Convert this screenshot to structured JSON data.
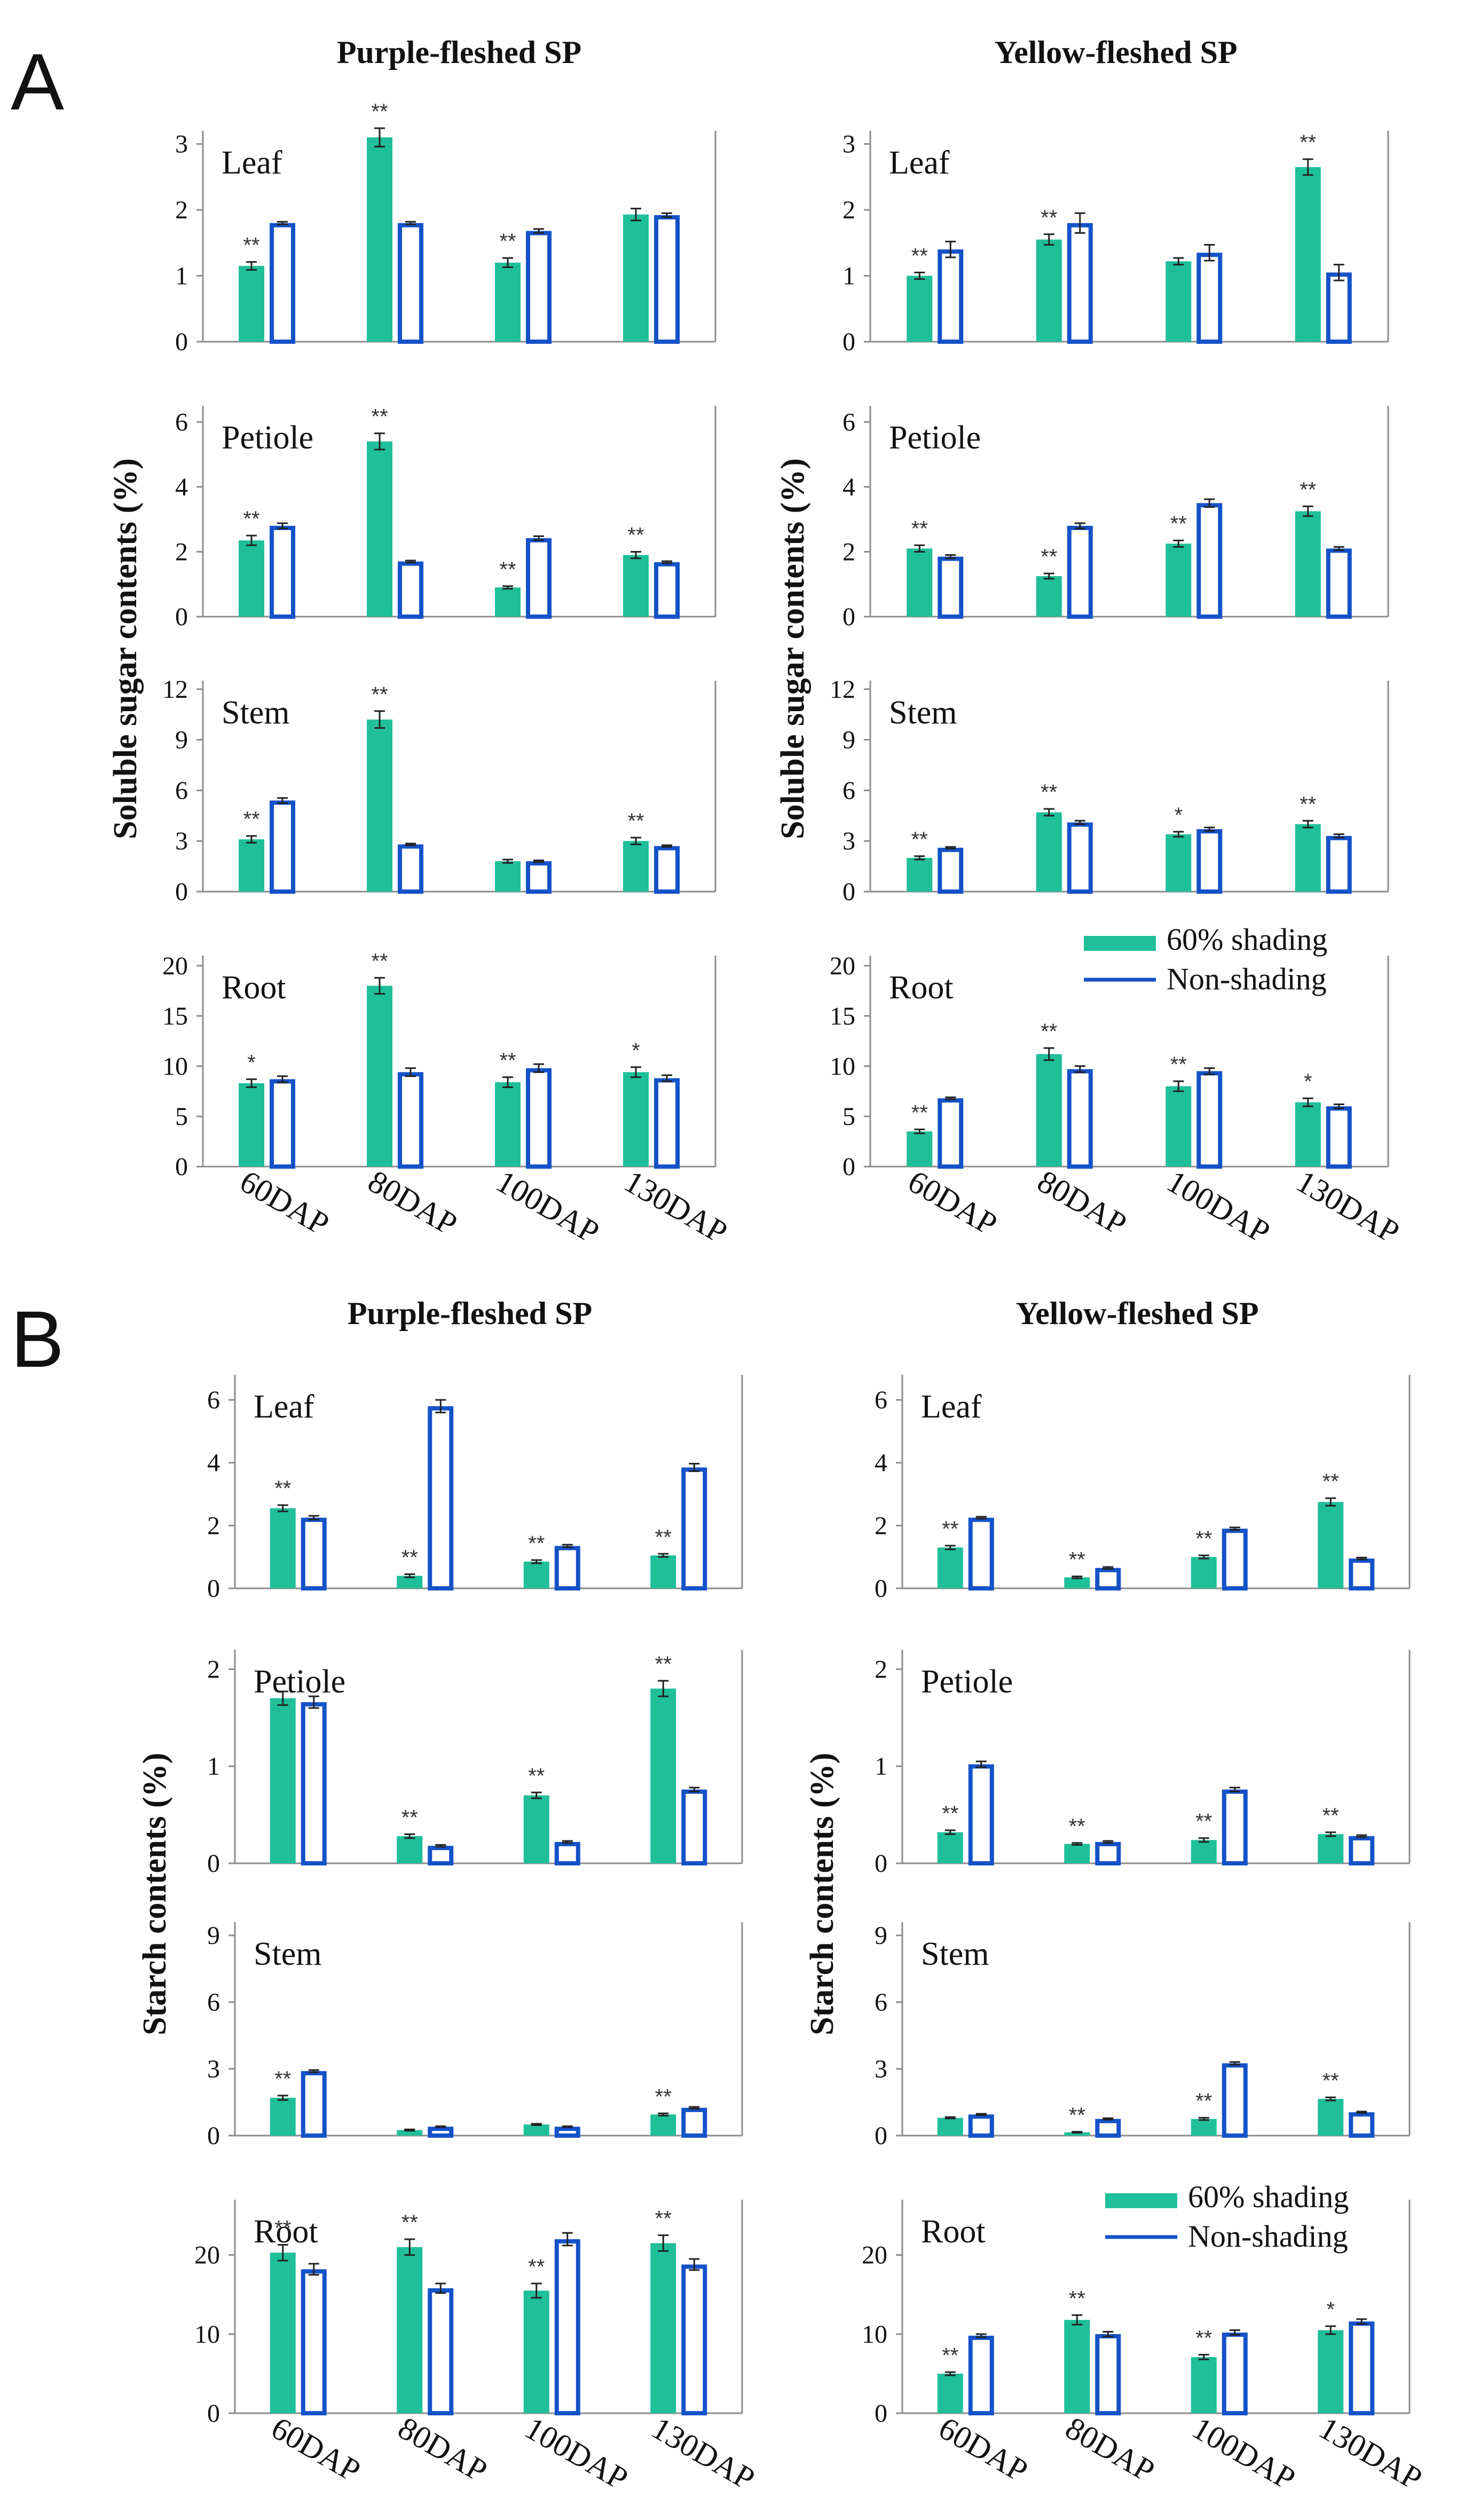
{
  "colors": {
    "shaded": "#1fbf9a",
    "nonshaded": "#1452c8",
    "axis": "#8c8c8c",
    "text": "#111111"
  },
  "sections": [
    {
      "letter": "A",
      "group_titles": [
        "Purple-fleshed SP",
        "Yellow-fleshed SP"
      ],
      "y_label": "Soluble  sugar  contents  (%)",
      "categories": [
        "60DAP",
        "80DAP",
        "100DAP",
        "130DAP"
      ],
      "legend": {
        "shaded": "60% shading",
        "nonshaded": "Non-shading",
        "column": 1
      }
    },
    {
      "letter": "B",
      "group_titles": [
        "Purple-fleshed SP",
        "Yellow-fleshed SP"
      ],
      "y_label": "Starch  contents  (%)",
      "categories": [
        "60DAP",
        "80DAP",
        "100DAP",
        "130DAP"
      ],
      "legend": {
        "shaded": "60% shading",
        "nonshaded": "Non-shading",
        "column": 1
      }
    }
  ],
  "chart_data": [
    {
      "type": "bar",
      "section": "A",
      "group": "Purple-fleshed SP",
      "title": "Leaf",
      "categories": [
        "60DAP",
        "80DAP",
        "100DAP",
        "130DAP"
      ],
      "ylim": [
        0,
        3.2
      ],
      "yticks": [
        0,
        1,
        2,
        3
      ],
      "series": [
        {
          "name": "60% shading",
          "values": [
            1.15,
            3.1,
            1.2,
            1.93
          ],
          "errors": [
            0.06,
            0.14,
            0.07,
            0.09
          ]
        },
        {
          "name": "Non-shading",
          "values": [
            1.8,
            1.8,
            1.68,
            1.92
          ],
          "errors": [
            0.02,
            0.02,
            0.03,
            0.03
          ]
        }
      ],
      "significance": [
        "**",
        "**",
        "**",
        ""
      ]
    },
    {
      "type": "bar",
      "section": "A",
      "group": "Purple-fleshed SP",
      "title": "Petiole",
      "categories": [
        "60DAP",
        "80DAP",
        "100DAP",
        "130DAP"
      ],
      "ylim": [
        0,
        6.5
      ],
      "yticks": [
        0,
        2,
        4,
        6
      ],
      "series": [
        {
          "name": "60% shading",
          "values": [
            2.35,
            5.4,
            0.9,
            1.9
          ],
          "errors": [
            0.15,
            0.25,
            0.04,
            0.1
          ]
        },
        {
          "name": "Non-shading",
          "values": [
            2.8,
            1.7,
            2.42,
            1.68
          ],
          "errors": [
            0.08,
            0.03,
            0.06,
            0.03
          ]
        }
      ],
      "significance": [
        "**",
        "**",
        "**",
        "**"
      ]
    },
    {
      "type": "bar",
      "section": "A",
      "group": "Purple-fleshed SP",
      "title": "Stem",
      "categories": [
        "60DAP",
        "80DAP",
        "100DAP",
        "130DAP"
      ],
      "ylim": [
        0,
        12.5
      ],
      "yticks": [
        0,
        3,
        6,
        9,
        12
      ],
      "series": [
        {
          "name": "60% shading",
          "values": [
            3.1,
            10.2,
            1.8,
            3.0
          ],
          "errors": [
            0.2,
            0.5,
            0.1,
            0.2
          ]
        },
        {
          "name": "Non-shading",
          "values": [
            5.4,
            2.8,
            1.8,
            2.7
          ],
          "errors": [
            0.15,
            0.05,
            0.05,
            0.05
          ]
        }
      ],
      "significance": [
        "**",
        "**",
        "",
        "**"
      ]
    },
    {
      "type": "bar",
      "section": "A",
      "group": "Purple-fleshed SP",
      "title": "Root",
      "categories": [
        "60DAP",
        "80DAP",
        "100DAP",
        "130DAP"
      ],
      "ylim": [
        0,
        21
      ],
      "yticks": [
        0,
        5,
        10,
        15,
        20
      ],
      "series": [
        {
          "name": "60% shading",
          "values": [
            8.3,
            18.0,
            8.4,
            9.4
          ],
          "errors": [
            0.4,
            0.8,
            0.5,
            0.5
          ]
        },
        {
          "name": "Non-shading",
          "values": [
            8.7,
            9.4,
            9.8,
            8.8
          ],
          "errors": [
            0.3,
            0.4,
            0.4,
            0.3
          ]
        }
      ],
      "significance": [
        "*",
        "**",
        "**",
        "*"
      ]
    },
    {
      "type": "bar",
      "section": "A",
      "group": "Yellow-fleshed SP",
      "title": "Leaf",
      "categories": [
        "60DAP",
        "80DAP",
        "100DAP",
        "130DAP"
      ],
      "ylim": [
        0,
        3.2
      ],
      "yticks": [
        0,
        1,
        2,
        3
      ],
      "series": [
        {
          "name": "60% shading",
          "values": [
            1.0,
            1.55,
            1.22,
            2.65
          ],
          "errors": [
            0.05,
            0.08,
            0.05,
            0.12
          ]
        },
        {
          "name": "Non-shading",
          "values": [
            1.4,
            1.8,
            1.35,
            1.05
          ],
          "errors": [
            0.12,
            0.15,
            0.12,
            0.12
          ]
        }
      ],
      "significance": [
        "**",
        "**",
        "",
        "**"
      ]
    },
    {
      "type": "bar",
      "section": "A",
      "group": "Yellow-fleshed SP",
      "title": "Petiole",
      "categories": [
        "60DAP",
        "80DAP",
        "100DAP",
        "130DAP"
      ],
      "ylim": [
        0,
        6.5
      ],
      "yticks": [
        0,
        2,
        4,
        6
      ],
      "series": [
        {
          "name": "60% shading",
          "values": [
            2.1,
            1.25,
            2.25,
            3.25
          ],
          "errors": [
            0.1,
            0.08,
            0.1,
            0.15
          ]
        },
        {
          "name": "Non-shading",
          "values": [
            1.85,
            2.8,
            3.5,
            2.1
          ],
          "errors": [
            0.05,
            0.08,
            0.12,
            0.05
          ]
        }
      ],
      "significance": [
        "**",
        "**",
        "**",
        "**"
      ]
    },
    {
      "type": "bar",
      "section": "A",
      "group": "Yellow-fleshed SP",
      "title": "Stem",
      "categories": [
        "60DAP",
        "80DAP",
        "100DAP",
        "130DAP"
      ],
      "ylim": [
        0,
        12.5
      ],
      "yticks": [
        0,
        3,
        6,
        9,
        12
      ],
      "series": [
        {
          "name": "60% shading",
          "values": [
            2.0,
            4.7,
            3.4,
            4.0
          ],
          "errors": [
            0.1,
            0.2,
            0.15,
            0.2
          ]
        },
        {
          "name": "Non-shading",
          "values": [
            2.6,
            4.1,
            3.7,
            3.3
          ],
          "errors": [
            0.05,
            0.1,
            0.1,
            0.1
          ]
        }
      ],
      "significance": [
        "**",
        "**",
        "*",
        "**"
      ]
    },
    {
      "type": "bar",
      "section": "A",
      "group": "Yellow-fleshed SP",
      "title": "Root",
      "categories": [
        "60DAP",
        "80DAP",
        "100DAP",
        "130DAP"
      ],
      "ylim": [
        0,
        21
      ],
      "yticks": [
        0,
        5,
        10,
        15,
        20
      ],
      "series": [
        {
          "name": "60% shading",
          "values": [
            3.5,
            11.2,
            8.0,
            6.4
          ],
          "errors": [
            0.2,
            0.6,
            0.5,
            0.4
          ]
        },
        {
          "name": "Non-shading",
          "values": [
            6.8,
            9.7,
            9.5,
            6.0
          ],
          "errors": [
            0.1,
            0.3,
            0.3,
            0.2
          ]
        }
      ],
      "significance": [
        "**",
        "**",
        "**",
        "*"
      ]
    },
    {
      "type": "bar",
      "section": "B",
      "group": "Purple-fleshed SP",
      "title": "Leaf",
      "categories": [
        "60DAP",
        "80DAP",
        "100DAP",
        "130DAP"
      ],
      "ylim": [
        0,
        6.8
      ],
      "yticks": [
        0,
        2,
        4,
        6
      ],
      "series": [
        {
          "name": "60% shading",
          "values": [
            2.55,
            0.4,
            0.85,
            1.05
          ],
          "errors": [
            0.1,
            0.05,
            0.05,
            0.05
          ]
        },
        {
          "name": "Non-shading",
          "values": [
            2.25,
            5.8,
            1.35,
            3.85
          ],
          "errors": [
            0.06,
            0.2,
            0.04,
            0.12
          ]
        }
      ],
      "significance": [
        "**",
        "**",
        "**",
        "**"
      ]
    },
    {
      "type": "bar",
      "section": "B",
      "group": "Purple-fleshed SP",
      "title": "Petiole",
      "categories": [
        "60DAP",
        "80DAP",
        "100DAP",
        "130DAP"
      ],
      "ylim": [
        0,
        2.2
      ],
      "yticks": [
        0,
        1,
        2
      ],
      "series": [
        {
          "name": "60% shading",
          "values": [
            1.7,
            0.28,
            0.7,
            1.8
          ],
          "errors": [
            0.07,
            0.02,
            0.03,
            0.08
          ]
        },
        {
          "name": "Non-shading",
          "values": [
            1.66,
            0.18,
            0.22,
            0.76
          ],
          "errors": [
            0.06,
            0.01,
            0.01,
            0.02
          ]
        }
      ],
      "significance": [
        "",
        "**",
        "**",
        "**"
      ]
    },
    {
      "type": "bar",
      "section": "B",
      "group": "Purple-fleshed SP",
      "title": "Stem",
      "categories": [
        "60DAP",
        "80DAP",
        "100DAP",
        "130DAP"
      ],
      "ylim": [
        0,
        9.6
      ],
      "yticks": [
        0,
        3,
        6,
        9
      ],
      "series": [
        {
          "name": "60% shading",
          "values": [
            1.7,
            0.25,
            0.5,
            0.95
          ],
          "errors": [
            0.1,
            0.03,
            0.03,
            0.05
          ]
        },
        {
          "name": "Non-shading",
          "values": [
            2.9,
            0.4,
            0.4,
            1.25
          ],
          "errors": [
            0.05,
            0.02,
            0.02,
            0.04
          ]
        }
      ],
      "significance": [
        "**",
        "",
        "",
        "**"
      ]
    },
    {
      "type": "bar",
      "section": "B",
      "group": "Purple-fleshed SP",
      "title": "Root",
      "categories": [
        "60DAP",
        "80DAP",
        "100DAP",
        "130DAP"
      ],
      "ylim": [
        0,
        27
      ],
      "yticks": [
        0,
        10,
        20
      ],
      "series": [
        {
          "name": "60% shading",
          "values": [
            20.3,
            21.0,
            15.5,
            21.5
          ],
          "errors": [
            1.0,
            1.0,
            0.9,
            1.0
          ]
        },
        {
          "name": "Non-shading",
          "values": [
            18.2,
            15.8,
            22.0,
            18.8
          ],
          "errors": [
            0.7,
            0.6,
            0.8,
            0.7
          ]
        }
      ],
      "significance": [
        "**",
        "**",
        "**",
        "**"
      ]
    },
    {
      "type": "bar",
      "section": "B",
      "group": "Yellow-fleshed SP",
      "title": "Leaf",
      "categories": [
        "60DAP",
        "80DAP",
        "100DAP",
        "130DAP"
      ],
      "ylim": [
        0,
        6.8
      ],
      "yticks": [
        0,
        2,
        4,
        6
      ],
      "series": [
        {
          "name": "60% shading",
          "values": [
            1.3,
            0.35,
            1.0,
            2.75
          ],
          "errors": [
            0.06,
            0.03,
            0.05,
            0.12
          ]
        },
        {
          "name": "Non-shading",
          "values": [
            2.25,
            0.65,
            1.9,
            0.95
          ],
          "errors": [
            0.03,
            0.03,
            0.04,
            0.03
          ]
        }
      ],
      "significance": [
        "**",
        "**",
        "**",
        "**"
      ]
    },
    {
      "type": "bar",
      "section": "B",
      "group": "Yellow-fleshed SP",
      "title": "Petiole",
      "categories": [
        "60DAP",
        "80DAP",
        "100DAP",
        "130DAP"
      ],
      "ylim": [
        0,
        2.2
      ],
      "yticks": [
        0,
        1,
        2
      ],
      "series": [
        {
          "name": "60% shading",
          "values": [
            0.32,
            0.2,
            0.24,
            0.3
          ],
          "errors": [
            0.02,
            0.01,
            0.02,
            0.02
          ]
        },
        {
          "name": "Non-shading",
          "values": [
            1.02,
            0.22,
            0.76,
            0.28
          ],
          "errors": [
            0.03,
            0.01,
            0.02,
            0.01
          ]
        }
      ],
      "significance": [
        "**",
        "**",
        "**",
        "**"
      ]
    },
    {
      "type": "bar",
      "section": "B",
      "group": "Yellow-fleshed SP",
      "title": "Stem",
      "categories": [
        "60DAP",
        "80DAP",
        "100DAP",
        "130DAP"
      ],
      "ylim": [
        0,
        9.6
      ],
      "yticks": [
        0,
        3,
        6,
        9
      ],
      "series": [
        {
          "name": "60% shading",
          "values": [
            0.8,
            0.15,
            0.75,
            1.65
          ],
          "errors": [
            0.03,
            0.02,
            0.05,
            0.07
          ]
        },
        {
          "name": "Non-shading",
          "values": [
            0.95,
            0.75,
            3.25,
            1.05
          ],
          "errors": [
            0.03,
            0.03,
            0.06,
            0.03
          ]
        }
      ],
      "significance": [
        "",
        "**",
        "**",
        "**"
      ]
    },
    {
      "type": "bar",
      "section": "B",
      "group": "Yellow-fleshed SP",
      "title": "Root",
      "categories": [
        "60DAP",
        "80DAP",
        "100DAP",
        "130DAP"
      ],
      "ylim": [
        0,
        27
      ],
      "yticks": [
        0,
        10,
        20
      ],
      "series": [
        {
          "name": "60% shading",
          "values": [
            5.0,
            11.8,
            7.1,
            10.5
          ],
          "errors": [
            0.2,
            0.6,
            0.3,
            0.5
          ]
        },
        {
          "name": "Non-shading",
          "values": [
            9.8,
            10.0,
            10.2,
            11.6
          ],
          "errors": [
            0.2,
            0.3,
            0.3,
            0.3
          ]
        }
      ],
      "significance": [
        "**",
        "**",
        "**",
        "*"
      ]
    }
  ]
}
